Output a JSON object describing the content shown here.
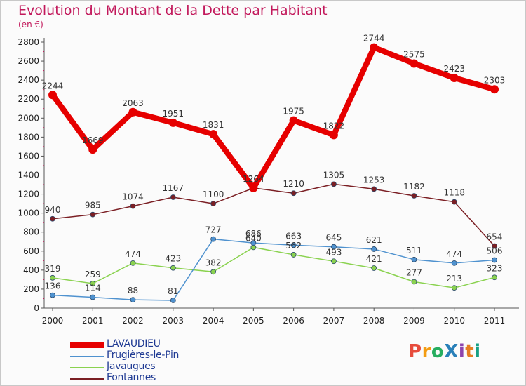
{
  "header": {
    "title": "Evolution du Montant de la Dette par Habitant",
    "subtitle": "(en €)"
  },
  "logo": {
    "text": "ProXiti",
    "colors": [
      "#e74c3c",
      "#f39c12",
      "#27ae60",
      "#2980b9",
      "#8e44ad",
      "#e67e22",
      "#16a085"
    ]
  },
  "chart_data": {
    "type": "line",
    "title": "Evolution du Montant de la Dette par Habitant",
    "subtitle": "(en €)",
    "xlabel": "",
    "ylabel": "",
    "x": [
      "2000",
      "2001",
      "2002",
      "2003",
      "2004",
      "2005",
      "2006",
      "2007",
      "2008",
      "2009",
      "2010",
      "2011"
    ],
    "ylim": [
      0,
      2800
    ],
    "yticks": [
      "0",
      "200",
      "400",
      "600",
      "800",
      "1000",
      "1200",
      "1400",
      "1600",
      "1800",
      "2000",
      "2200",
      "2400",
      "2600",
      "2800"
    ],
    "grid": false,
    "legend_position": "bottom-left",
    "series": [
      {
        "name": "LAVAUDIEU",
        "color": "#e60000",
        "values": [
          2244,
          1669,
          2063,
          1951,
          1831,
          1264,
          1975,
          1822,
          2744,
          2575,
          2423,
          2303
        ]
      },
      {
        "name": "Frugières-le-Pin",
        "color": "#4f92cf",
        "values": [
          136,
          114,
          88,
          81,
          727,
          686,
          663,
          645,
          621,
          511,
          474,
          506
        ]
      },
      {
        "name": "Javaugues",
        "color": "#8ad24f",
        "values": [
          319,
          259,
          474,
          423,
          382,
          640,
          562,
          493,
          421,
          277,
          213,
          323
        ]
      },
      {
        "name": "Fontannes",
        "color": "#7b1f24",
        "values": [
          940,
          985,
          1074,
          1167,
          1100,
          1264,
          1210,
          1305,
          1253,
          1182,
          1118,
          654
        ]
      }
    ]
  }
}
